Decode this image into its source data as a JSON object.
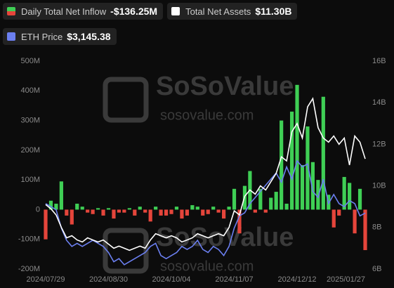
{
  "chart_data": {
    "type": "bar-line",
    "watermark": [
      "SoSoValue",
      "sosovalue.com"
    ],
    "categories": [
      "2024/07/29",
      null,
      null,
      null,
      null,
      null,
      null,
      null,
      null,
      null,
      null,
      null,
      "2024/08/30",
      null,
      null,
      null,
      null,
      null,
      null,
      null,
      null,
      null,
      null,
      null,
      "2024/10/04",
      null,
      null,
      null,
      null,
      null,
      null,
      null,
      null,
      null,
      null,
      null,
      "2024/11/07",
      null,
      null,
      null,
      null,
      null,
      null,
      null,
      null,
      null,
      null,
      null,
      "2024/12/12",
      null,
      null,
      null,
      null,
      null,
      null,
      null,
      null,
      null,
      null,
      null,
      null,
      "2025/01/27"
    ],
    "series": [
      {
        "name": "Daily Total Net Inflow",
        "current": "-$136.25M",
        "color": "#3fcf55",
        "negative_color": "#e5453b",
        "axis": "y",
        "values": [
          -100,
          30,
          20,
          95,
          -20,
          -50,
          20,
          10,
          -10,
          -15,
          5,
          -20,
          5,
          -30,
          -10,
          -10,
          5,
          -20,
          10,
          -10,
          -40,
          10,
          -20,
          -20,
          -15,
          10,
          -30,
          -20,
          15,
          10,
          -20,
          -15,
          10,
          -10,
          -30,
          10,
          70,
          -80,
          80,
          130,
          -10,
          70,
          -10,
          40,
          60,
          300,
          20,
          330,
          420,
          150,
          280,
          160,
          100,
          380,
          50,
          -60,
          -20,
          110,
          90,
          -80,
          70,
          -136.25
        ]
      },
      {
        "name": "Total Net Assets",
        "current": "$11.30B",
        "color": "#ffffff",
        "axis": "y2",
        "values": [
          9.1,
          8.9,
          8.6,
          8.0,
          7.5,
          7.6,
          7.4,
          7.3,
          7.5,
          7.4,
          7.3,
          7.4,
          7.2,
          7.0,
          7.1,
          7.0,
          6.9,
          7.0,
          7.1,
          7.0,
          7.4,
          7.7,
          7.6,
          7.5,
          7.6,
          7.5,
          7.3,
          7.4,
          7.5,
          7.7,
          7.6,
          7.5,
          7.6,
          7.7,
          7.6,
          8.0,
          8.8,
          8.6,
          9.5,
          9.8,
          9.6,
          10.0,
          9.8,
          10.2,
          10.6,
          11.4,
          11.2,
          12.6,
          13.0,
          12.3,
          13.8,
          14.2,
          12.8,
          12.3,
          12.1,
          12.4,
          12.0,
          12.3,
          11.0,
          12.4,
          12.1,
          11.3
        ]
      },
      {
        "name": "ETH Price",
        "current": "$3,145.38",
        "color": "#6b7ff0",
        "axis": "y3",
        "values": [
          3300,
          3250,
          3200,
          2900,
          2700,
          2600,
          2650,
          2600,
          2650,
          2700,
          2650,
          2600,
          2500,
          2350,
          2400,
          2300,
          2350,
          2400,
          2450,
          2500,
          2600,
          2650,
          2450,
          2400,
          2450,
          2500,
          2600,
          2550,
          2600,
          2700,
          2550,
          2500,
          2600,
          2550,
          2450,
          2600,
          2900,
          3100,
          3150,
          3300,
          3400,
          3500,
          3600,
          3700,
          3800,
          3650,
          3900,
          3700,
          4000,
          3900,
          3950,
          3500,
          3400,
          3700,
          3300,
          3450,
          3300,
          3250,
          3350,
          3300,
          3100,
          3145.38
        ]
      }
    ],
    "ylim": [
      -200,
      500
    ],
    "yticks": [
      {
        "value": -200,
        "label": "-200M"
      },
      {
        "value": -100,
        "label": "-100M"
      },
      0,
      {
        "value": 100,
        "label": "100M"
      },
      {
        "value": 200,
        "label": "200M"
      },
      {
        "value": 300,
        "label": "300M"
      },
      {
        "value": 400,
        "label": "400M"
      },
      {
        "value": 500,
        "label": "500M"
      }
    ],
    "y2lim": [
      6,
      16
    ],
    "y2ticks": [
      {
        "value": 6,
        "label": "6B"
      },
      {
        "value": 8,
        "label": "8B"
      },
      {
        "value": 10,
        "label": "10B"
      },
      {
        "value": 12,
        "label": "12B"
      },
      {
        "value": 14,
        "label": "14B"
      },
      {
        "value": 16,
        "label": "16B"
      }
    ],
    "y3lim": [
      2230,
      5630
    ],
    "grid": false
  }
}
